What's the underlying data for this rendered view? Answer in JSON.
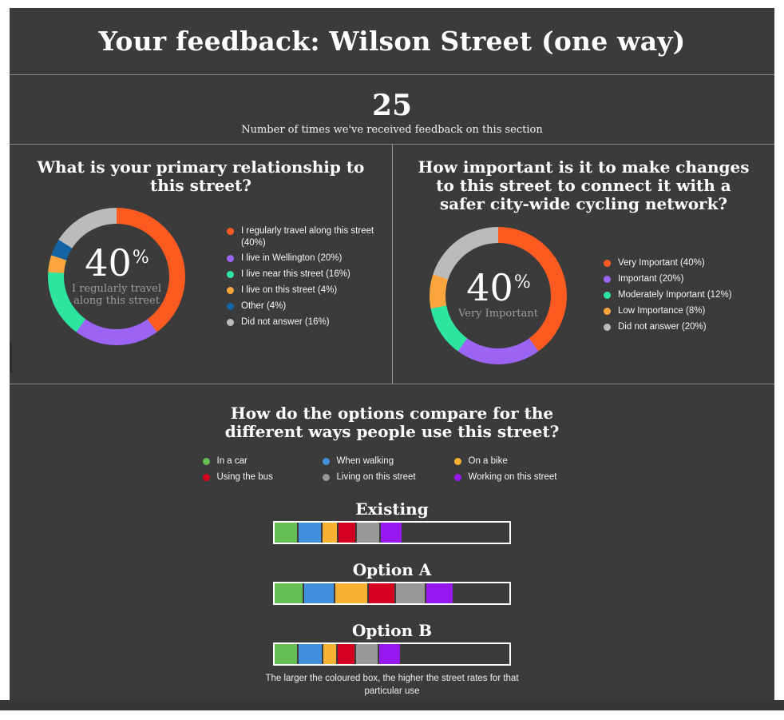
{
  "header": {
    "title": "Your feedback: Wilson Street (one way)"
  },
  "stats": {
    "value": "25",
    "caption": "Number of times we've received feedback on this section"
  },
  "colors": {
    "panel_bg": "#3b3b3b",
    "page_bg": "#ffffff",
    "hairline": "#8a8a8a",
    "text": "#ffffff",
    "muted_text": "#9c9c9c"
  },
  "chart_data": [
    {
      "type": "pie",
      "variant": "donut",
      "title": "What is your primary relationship to this street?",
      "center": {
        "value": "40",
        "unit": "%",
        "label": "I regularly travel along this street"
      },
      "legend_position": "right",
      "segments": [
        {
          "label": "I regularly travel along this street",
          "pct": 40,
          "color": "#fb5b21"
        },
        {
          "label": "I live in Wellington",
          "pct": 20,
          "color": "#9b64f2"
        },
        {
          "label": "I live near this street",
          "pct": 16,
          "color": "#2ee5a0"
        },
        {
          "label": "I live on this street",
          "pct": 4,
          "color": "#faa53e"
        },
        {
          "label": "Other",
          "pct": 4,
          "color": "#1464a5"
        },
        {
          "label": "Did not answer",
          "pct": 16,
          "color": "#bbbbbb"
        }
      ]
    },
    {
      "type": "pie",
      "variant": "donut",
      "title": "How important is it to make changes to this street to connect it with a safer city-wide cycling network?",
      "center": {
        "value": "40",
        "unit": "%",
        "label": "Very Important"
      },
      "legend_position": "right",
      "segments": [
        {
          "label": "Very Important",
          "pct": 40,
          "color": "#fb5b21"
        },
        {
          "label": "Important",
          "pct": 20,
          "color": "#9b64f2"
        },
        {
          "label": "Moderately Important",
          "pct": 12,
          "color": "#2ee5a0"
        },
        {
          "label": "Low Importance",
          "pct": 8,
          "color": "#faa53e"
        },
        {
          "label": "Did not answer",
          "pct": 20,
          "color": "#bbbbbb"
        }
      ]
    },
    {
      "type": "bar",
      "title": "How do the options compare for the different ways people use this street?",
      "note": "The larger the coloured box, the higher the street rates for that particular use",
      "uses": [
        {
          "label": "In a car",
          "color": "#66be55"
        },
        {
          "label": "When walking",
          "color": "#428fdc"
        },
        {
          "label": "On a bike",
          "color": "#f9b233"
        },
        {
          "label": "Using the bus",
          "color": "#d50020"
        },
        {
          "label": "Living on this street",
          "color": "#999999"
        },
        {
          "label": "Working on this street",
          "color": "#9619f2"
        }
      ],
      "bars": [
        {
          "label": "Existing",
          "values_pct": [
            9.5,
            9.5,
            6.1,
            7.1,
            9.5,
            9.1
          ]
        },
        {
          "label": "Option A",
          "values_pct": [
            11.8,
            12.8,
            13.5,
            10.8,
            12.2,
            11.5
          ]
        },
        {
          "label": "Option B",
          "values_pct": [
            9.5,
            9.8,
            5.7,
            7.1,
            9.1,
            8.8
          ]
        }
      ]
    }
  ]
}
